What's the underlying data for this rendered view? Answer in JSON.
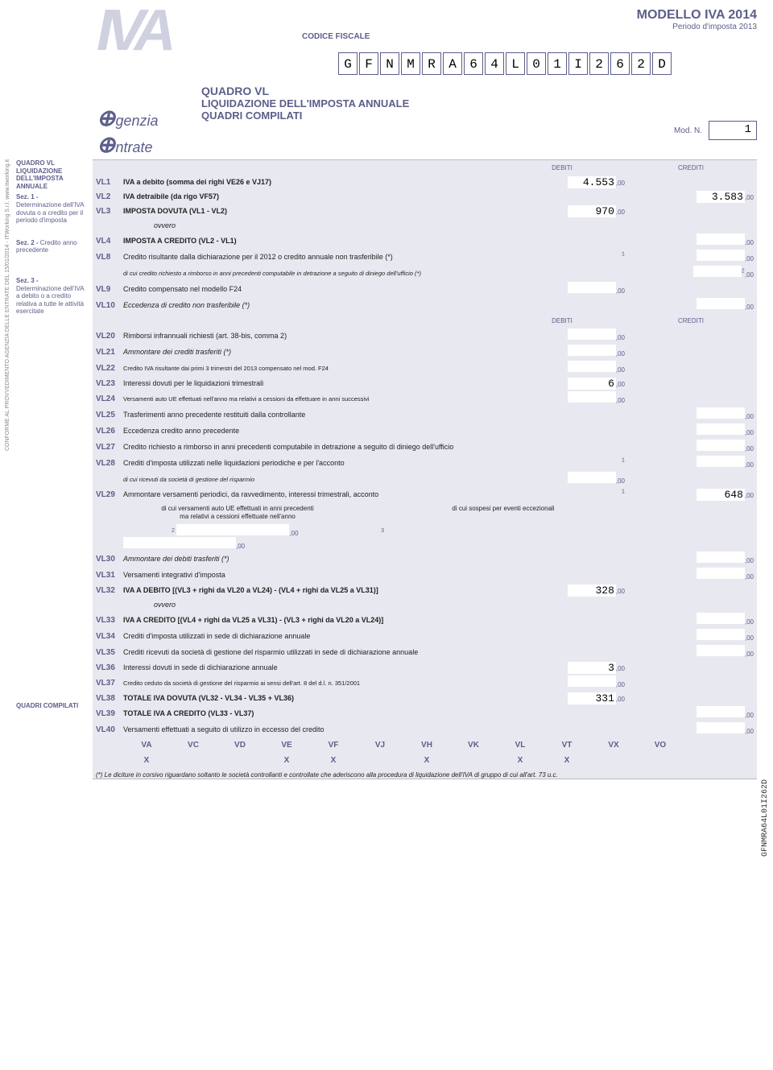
{
  "header": {
    "model_title": "MODELLO IVA 2014",
    "period": "Periodo d'imposta 2013",
    "codice_fiscale_label": "CODICE FISCALE",
    "codice_fiscale": [
      "G",
      "F",
      "N",
      "M",
      "R",
      "A",
      "6",
      "4",
      "L",
      "0",
      "1",
      "I",
      "2",
      "6",
      "2",
      "D"
    ],
    "section_l1": "QUADRO VL",
    "section_l2": "LIQUIDAZIONE DELL'IMPOSTA ANNUALE",
    "section_l3": "QUADRI COMPILATI",
    "mod_n_label": "Mod. N.",
    "mod_n": "1",
    "logo_text": "IVA",
    "agenzia_text": "genzia",
    "agenzia_text2": "ntrate"
  },
  "colors": {
    "primary": "#5c5e8a",
    "band_bg": "#e8e8f0",
    "band_alt": "#f2f2f7",
    "logo_gray": "#cfd0e0"
  },
  "col_headers": {
    "debiti": "DEBITI",
    "crediti": "CREDITI"
  },
  "left_blocks": {
    "b1": "QUADRO VL\nLIQUIDAZIONE DELL'IMPOSTA ANNUALE",
    "b2": "Sez. 1 -\nDeterminazione dell'IVA dovuta o a credito per il periodo d'imposta",
    "b3": "Sez. 2 - Credito anno precedente",
    "b4": "Sez. 3 -\nDeterminazione dell'IVA a debito o a credito relativa a tutte le attività esercitate",
    "b5": "QUADRI COMPILATI"
  },
  "rows": {
    "VL1": {
      "code": "VL1",
      "desc": "IVA a debito (somma dei righi VE26 e VJ17)",
      "bold": true,
      "debiti": "4.553"
    },
    "VL2": {
      "code": "VL2",
      "desc": "IVA detraibile (da rigo VF57)",
      "bold": true,
      "crediti": "3.583"
    },
    "VL3": {
      "code": "VL3",
      "desc": "IMPOSTA DOVUTA (VL1 - VL2)",
      "bold": true,
      "debiti": "970"
    },
    "ovvero1": "ovvero",
    "VL4": {
      "code": "VL4",
      "desc": "IMPOSTA A CREDITO (VL2 - VL1)",
      "bold": true,
      "crediti": ""
    },
    "VL8": {
      "code": "VL8",
      "desc": "Credito risultante dalla dichiarazione per il 2012 o credito annuale non trasferibile (*)",
      "sup1": "1",
      "crediti": ""
    },
    "VL8b": {
      "desc_sm": "di cui credito richiesto a rimborso in anni precedenti computabile in detrazione a seguito di diniego dell'ufficio (*)",
      "sup2": "2",
      "crediti": ""
    },
    "VL9": {
      "code": "VL9",
      "desc": "Credito compensato nel modello F24",
      "debiti": ""
    },
    "VL10": {
      "code": "VL10",
      "desc": "Eccedenza di credito non trasferibile (*)",
      "italic": true,
      "crediti": ""
    },
    "VL20": {
      "code": "VL20",
      "desc": "Rimborsi infrannuali richiesti (art. 38-bis, comma 2)",
      "debiti": ""
    },
    "VL21": {
      "code": "VL21",
      "desc": "Ammontare dei crediti trasferiti (*)",
      "italic": true,
      "debiti": ""
    },
    "VL22": {
      "code": "VL22",
      "desc": "Credito IVA risultante dai primi 3 trimestri del 2013 compensato nel mod. F24",
      "sm": true,
      "debiti": ""
    },
    "VL23": {
      "code": "VL23",
      "desc": "Interessi dovuti per le liquidazioni trimestrali",
      "debiti": "6"
    },
    "VL24": {
      "code": "VL24",
      "desc": "Versamenti auto UE effettuati nell'anno ma relativi a cessioni da effettuare in anni successivi",
      "sm": true,
      "debiti": ""
    },
    "VL25": {
      "code": "VL25",
      "desc": "Trasferimenti anno precedente restituiti dalla controllante",
      "crediti": ""
    },
    "VL26": {
      "code": "VL26",
      "desc": "Eccedenza credito anno precedente",
      "crediti": ""
    },
    "VL27": {
      "code": "VL27",
      "desc": "Credito richiesto a rimborso in anni precedenti computabile in detrazione a seguito di diniego dell'ufficio",
      "crediti": ""
    },
    "VL28": {
      "code": "VL28",
      "desc": "Crediti d'imposta utilizzati nelle liquidazioni periodiche e per l'acconto",
      "sup1": "1",
      "crediti": ""
    },
    "VL28b": {
      "desc_sm": "di cui ricevuti da società di gestione del risparmio",
      "sup2": "2",
      "debiti": ""
    },
    "VL29": {
      "code": "VL29",
      "desc": "Ammontare versamenti periodici, da ravvedimento, interessi trimestrali, acconto",
      "sup1": "1",
      "crediti": "648"
    },
    "VL29sub1": "di cui versamenti auto UE effettuati in anni precedenti ma relativi a cessioni effettuate nell'anno",
    "VL29sub2": "di cui sospesi per eventi eccezionali",
    "VL30": {
      "code": "VL30",
      "desc": "Ammontare dei debiti trasferiti (*)",
      "italic": true,
      "crediti": ""
    },
    "VL31": {
      "code": "VL31",
      "desc": "Versamenti integrativi d'imposta",
      "crediti": ""
    },
    "VL32": {
      "code": "VL32",
      "desc": "IVA A DEBITO [(VL3 + righi da VL20 a VL24) - (VL4 + righi da VL25 a VL31)]",
      "bold": true,
      "sm": true,
      "debiti": "328"
    },
    "ovvero2": "ovvero",
    "VL33": {
      "code": "VL33",
      "desc": "IVA A CREDITO  [(VL4 + righi da VL25 a VL31) - (VL3 + righi da VL20 a VL24)]",
      "bold": true,
      "sm": true,
      "crediti": ""
    },
    "VL34": {
      "code": "VL34",
      "desc": "Crediti d'imposta utilizzati in sede di dichiarazione annuale",
      "crediti": ""
    },
    "VL35": {
      "code": "VL35",
      "desc": "Crediti ricevuti da società di gestione del risparmio utilizzati in sede di dichiarazione annuale",
      "crediti": ""
    },
    "VL36": {
      "code": "VL36",
      "desc": "Interessi dovuti in sede di dichiarazione annuale",
      "debiti": "3"
    },
    "VL37": {
      "code": "VL37",
      "desc": "Credito ceduto da società di gestione del risparmio ai sensi dell'art. 8 del d.l. n. 351/2001",
      "sm": true,
      "debiti": ""
    },
    "VL38": {
      "code": "VL38",
      "desc": "TOTALE IVA DOVUTA  (VL32 - VL34 - VL35 + VL36)",
      "bold": true,
      "debiti": "331"
    },
    "VL39": {
      "code": "VL39",
      "desc": "TOTALE IVA A CREDITO  (VL33 - VL37)",
      "bold": true,
      "crediti": ""
    },
    "VL40": {
      "code": "VL40",
      "desc": "Versamenti effettuati a seguito di utilizzo in eccesso del credito",
      "crediti": ""
    }
  },
  "suffix": ",00",
  "quadri": {
    "labels": [
      "VA",
      "VC",
      "VD",
      "VE",
      "VF",
      "VJ",
      "VH",
      "VK",
      "VL",
      "VT",
      "VX",
      "VO"
    ],
    "values": [
      "X",
      "",
      "",
      "X",
      "X",
      "",
      "X",
      "",
      "X",
      "X",
      "",
      ""
    ]
  },
  "footnote": "(*) Le diciture in corsivo riguardano soltanto le società controllanti e controllate che aderiscono alla procedura di liquidazione dell'IVA di gruppo di cui all'art. 73 u.c.",
  "side_text": "CONFORME AL PROVVEDIMENTO AGENZIA DELLE ENTRATE DEL 15/01/2014 - ITWorking S.r.l.   www.itworking.it",
  "side_text_r": "GFNMRA64L01I262D"
}
